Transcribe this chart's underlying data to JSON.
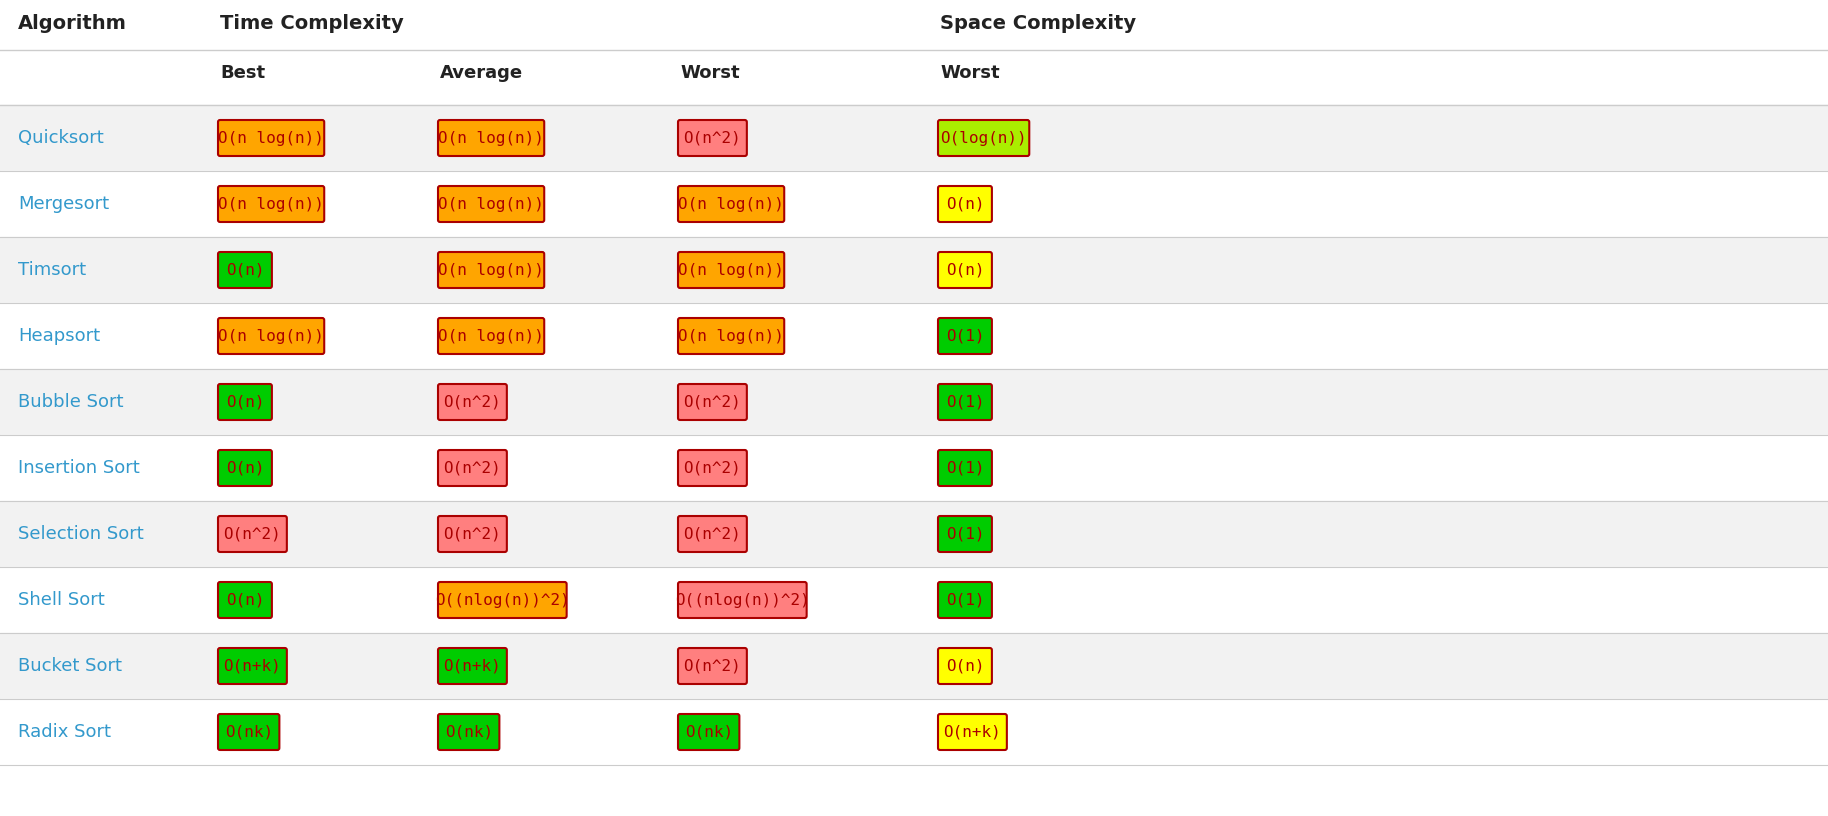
{
  "title_row": [
    "Algorithm",
    "Time Complexity",
    "",
    "",
    "Space Complexity"
  ],
  "header_row": [
    "",
    "Best",
    "Average",
    "Worst",
    "Worst"
  ],
  "rows": [
    {
      "name": "Quicksort",
      "best": {
        "text": "O(n log(n))",
        "color": "#FFA500"
      },
      "average": {
        "text": "O(n log(n))",
        "color": "#FFA500"
      },
      "worst": {
        "text": "O(n^2)",
        "color": "#FF7F7F"
      },
      "space": {
        "text": "O(log(n))",
        "color": "#AAEE00"
      }
    },
    {
      "name": "Mergesort",
      "best": {
        "text": "O(n log(n))",
        "color": "#FFA500"
      },
      "average": {
        "text": "O(n log(n))",
        "color": "#FFA500"
      },
      "worst": {
        "text": "O(n log(n))",
        "color": "#FFA500"
      },
      "space": {
        "text": "O(n)",
        "color": "#FFFF00"
      }
    },
    {
      "name": "Timsort",
      "best": {
        "text": "O(n)",
        "color": "#00CC00"
      },
      "average": {
        "text": "O(n log(n))",
        "color": "#FFA500"
      },
      "worst": {
        "text": "O(n log(n))",
        "color": "#FFA500"
      },
      "space": {
        "text": "O(n)",
        "color": "#FFFF00"
      }
    },
    {
      "name": "Heapsort",
      "best": {
        "text": "O(n log(n))",
        "color": "#FFA500"
      },
      "average": {
        "text": "O(n log(n))",
        "color": "#FFA500"
      },
      "worst": {
        "text": "O(n log(n))",
        "color": "#FFA500"
      },
      "space": {
        "text": "O(1)",
        "color": "#00CC00"
      }
    },
    {
      "name": "Bubble Sort",
      "best": {
        "text": "O(n)",
        "color": "#00CC00"
      },
      "average": {
        "text": "O(n^2)",
        "color": "#FF7F7F"
      },
      "worst": {
        "text": "O(n^2)",
        "color": "#FF7F7F"
      },
      "space": {
        "text": "O(1)",
        "color": "#00CC00"
      }
    },
    {
      "name": "Insertion Sort",
      "best": {
        "text": "O(n)",
        "color": "#00CC00"
      },
      "average": {
        "text": "O(n^2)",
        "color": "#FF7F7F"
      },
      "worst": {
        "text": "O(n^2)",
        "color": "#FF7F7F"
      },
      "space": {
        "text": "O(1)",
        "color": "#00CC00"
      }
    },
    {
      "name": "Selection Sort",
      "best": {
        "text": "O(n^2)",
        "color": "#FF7F7F"
      },
      "average": {
        "text": "O(n^2)",
        "color": "#FF7F7F"
      },
      "worst": {
        "text": "O(n^2)",
        "color": "#FF7F7F"
      },
      "space": {
        "text": "O(1)",
        "color": "#00CC00"
      }
    },
    {
      "name": "Shell Sort",
      "best": {
        "text": "O(n)",
        "color": "#00CC00"
      },
      "average": {
        "text": "O((nlog(n))^2)",
        "color": "#FFA500"
      },
      "worst": {
        "text": "O((nlog(n))^2)",
        "color": "#FF7F7F"
      },
      "space": {
        "text": "O(1)",
        "color": "#00CC00"
      }
    },
    {
      "name": "Bucket Sort",
      "best": {
        "text": "O(n+k)",
        "color": "#00CC00"
      },
      "average": {
        "text": "O(n+k)",
        "color": "#00CC00"
      },
      "worst": {
        "text": "O(n^2)",
        "color": "#FF7F7F"
      },
      "space": {
        "text": "O(n)",
        "color": "#FFFF00"
      }
    },
    {
      "name": "Radix Sort",
      "best": {
        "text": "O(nk)",
        "color": "#00CC00"
      },
      "average": {
        "text": "O(nk)",
        "color": "#00CC00"
      },
      "worst": {
        "text": "O(nk)",
        "color": "#00CC00"
      },
      "space": {
        "text": "O(n+k)",
        "color": "#FFFF00"
      }
    }
  ],
  "bg_color": "#FFFFFF",
  "row_colors": [
    "#F2F2F2",
    "#FFFFFF"
  ],
  "algo_color": "#3399CC",
  "header_color": "#222222",
  "border_color": "#CCCCCC",
  "badge_border": "#AA0000",
  "fig_w": 18.28,
  "fig_h": 8.16,
  "dpi": 100
}
